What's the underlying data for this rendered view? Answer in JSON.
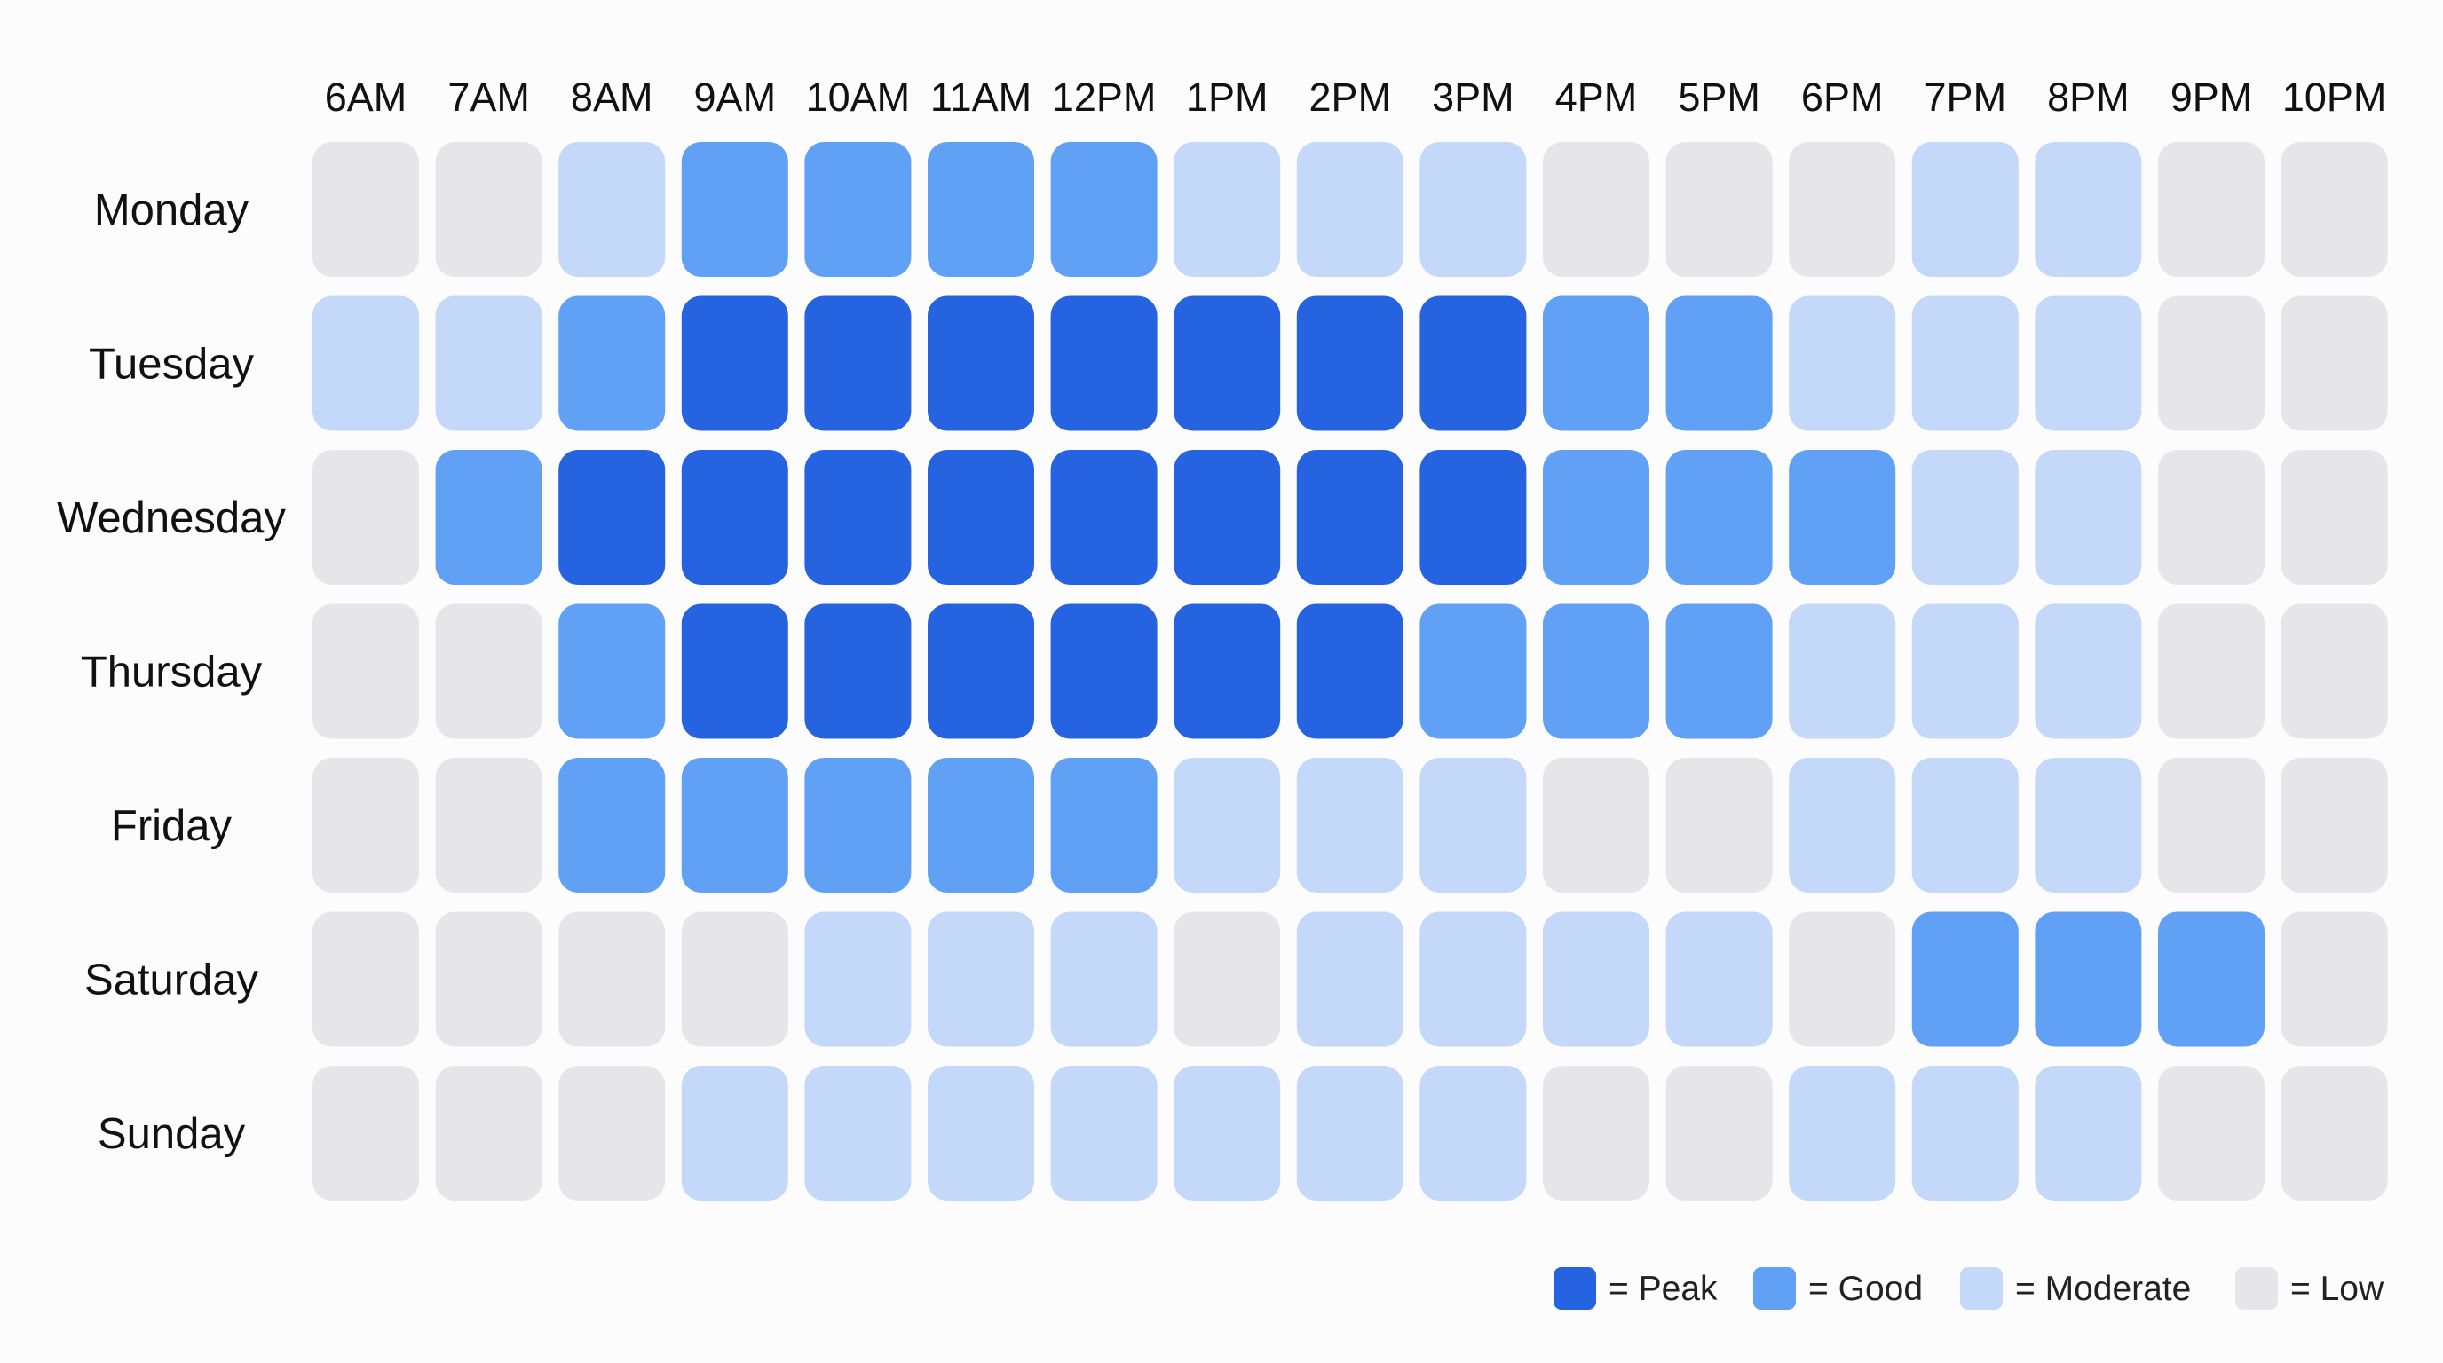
{
  "chart_data": {
    "type": "heatmap",
    "x": [
      "6AM",
      "7AM",
      "8AM",
      "9AM",
      "10AM",
      "11AM",
      "12PM",
      "1PM",
      "2PM",
      "3PM",
      "4PM",
      "5PM",
      "6PM",
      "7PM",
      "8PM",
      "9PM",
      "10PM"
    ],
    "y": [
      "Monday",
      "Tuesday",
      "Wednesday",
      "Thursday",
      "Friday",
      "Saturday",
      "Sunday"
    ],
    "levels": [
      {
        "key": "peak",
        "label": "= Peak",
        "color": "#2563e0"
      },
      {
        "key": "good",
        "label": "= Good",
        "color": "#60a0f5"
      },
      {
        "key": "moderate",
        "label": "= Moderate",
        "color": "#c4d9f9"
      },
      {
        "key": "low",
        "label": "= Low",
        "color": "#e6e6ea"
      }
    ],
    "values": [
      [
        "low",
        "low",
        "moderate",
        "good",
        "good",
        "good",
        "good",
        "moderate",
        "moderate",
        "moderate",
        "low",
        "low",
        "low",
        "moderate",
        "moderate",
        "low",
        "low"
      ],
      [
        "moderate",
        "moderate",
        "good",
        "peak",
        "peak",
        "peak",
        "peak",
        "peak",
        "peak",
        "peak",
        "good",
        "good",
        "moderate",
        "moderate",
        "moderate",
        "low",
        "low"
      ],
      [
        "low",
        "good",
        "peak",
        "peak",
        "peak",
        "peak",
        "peak",
        "peak",
        "peak",
        "peak",
        "good",
        "good",
        "good",
        "moderate",
        "moderate",
        "low",
        "low"
      ],
      [
        "low",
        "low",
        "good",
        "peak",
        "peak",
        "peak",
        "peak",
        "peak",
        "peak",
        "good",
        "good",
        "good",
        "moderate",
        "moderate",
        "moderate",
        "low",
        "low"
      ],
      [
        "low",
        "low",
        "good",
        "good",
        "good",
        "good",
        "good",
        "moderate",
        "moderate",
        "moderate",
        "low",
        "low",
        "moderate",
        "moderate",
        "moderate",
        "low",
        "low"
      ],
      [
        "low",
        "low",
        "low",
        "low",
        "moderate",
        "moderate",
        "moderate",
        "low",
        "moderate",
        "moderate",
        "moderate",
        "moderate",
        "low",
        "good",
        "good",
        "good",
        "low"
      ],
      [
        "low",
        "low",
        "low",
        "moderate",
        "moderate",
        "moderate",
        "moderate",
        "moderate",
        "moderate",
        "moderate",
        "low",
        "low",
        "moderate",
        "moderate",
        "moderate",
        "low",
        "low"
      ]
    ],
    "legend_position": "bottom-right"
  }
}
